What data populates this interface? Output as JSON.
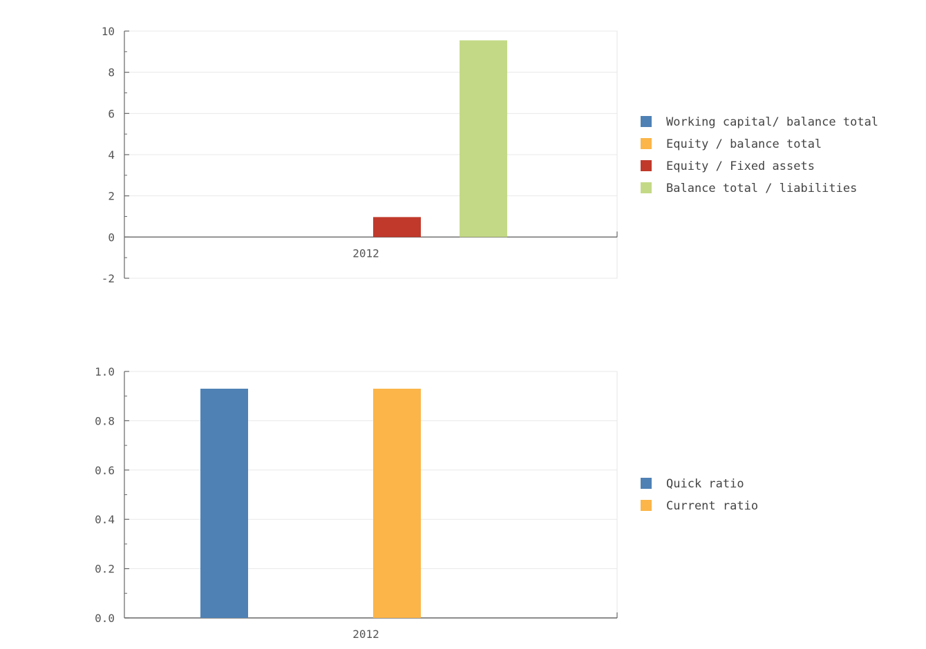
{
  "chart_data": [
    {
      "type": "bar",
      "categories": [
        "2012"
      ],
      "ylim": [
        -2,
        10
      ],
      "yticks": [
        -2,
        0,
        2,
        4,
        6,
        8,
        10
      ],
      "ytick_labels": [
        "-2",
        "0",
        "2",
        "4",
        "6",
        "8",
        "10"
      ],
      "grid": true,
      "legend_position": "right",
      "series": [
        {
          "name": "Working capital/ balance total",
          "color": "#4f81b5",
          "values": [
            0
          ]
        },
        {
          "name": "Equity / balance total",
          "color": "#fbb548",
          "values": [
            0
          ]
        },
        {
          "name": "Equity / Fixed assets",
          "color": "#c0392b",
          "values": [
            0.97
          ]
        },
        {
          "name": "Balance total / liabilities",
          "color": "#c4d986",
          "values": [
            9.55
          ]
        }
      ]
    },
    {
      "type": "bar",
      "categories": [
        "2012"
      ],
      "ylim": [
        0,
        1
      ],
      "yticks": [
        0,
        0.2,
        0.4,
        0.6,
        0.8,
        1.0
      ],
      "ytick_labels": [
        "0.0",
        "0.2",
        "0.4",
        "0.6",
        "0.8",
        "1.0"
      ],
      "grid": true,
      "legend_position": "right",
      "series": [
        {
          "name": "Quick ratio",
          "color": "#4f81b5",
          "values": [
            0.93
          ]
        },
        {
          "name": "Current ratio",
          "color": "#fbb548",
          "values": [
            0.93
          ]
        }
      ]
    }
  ]
}
